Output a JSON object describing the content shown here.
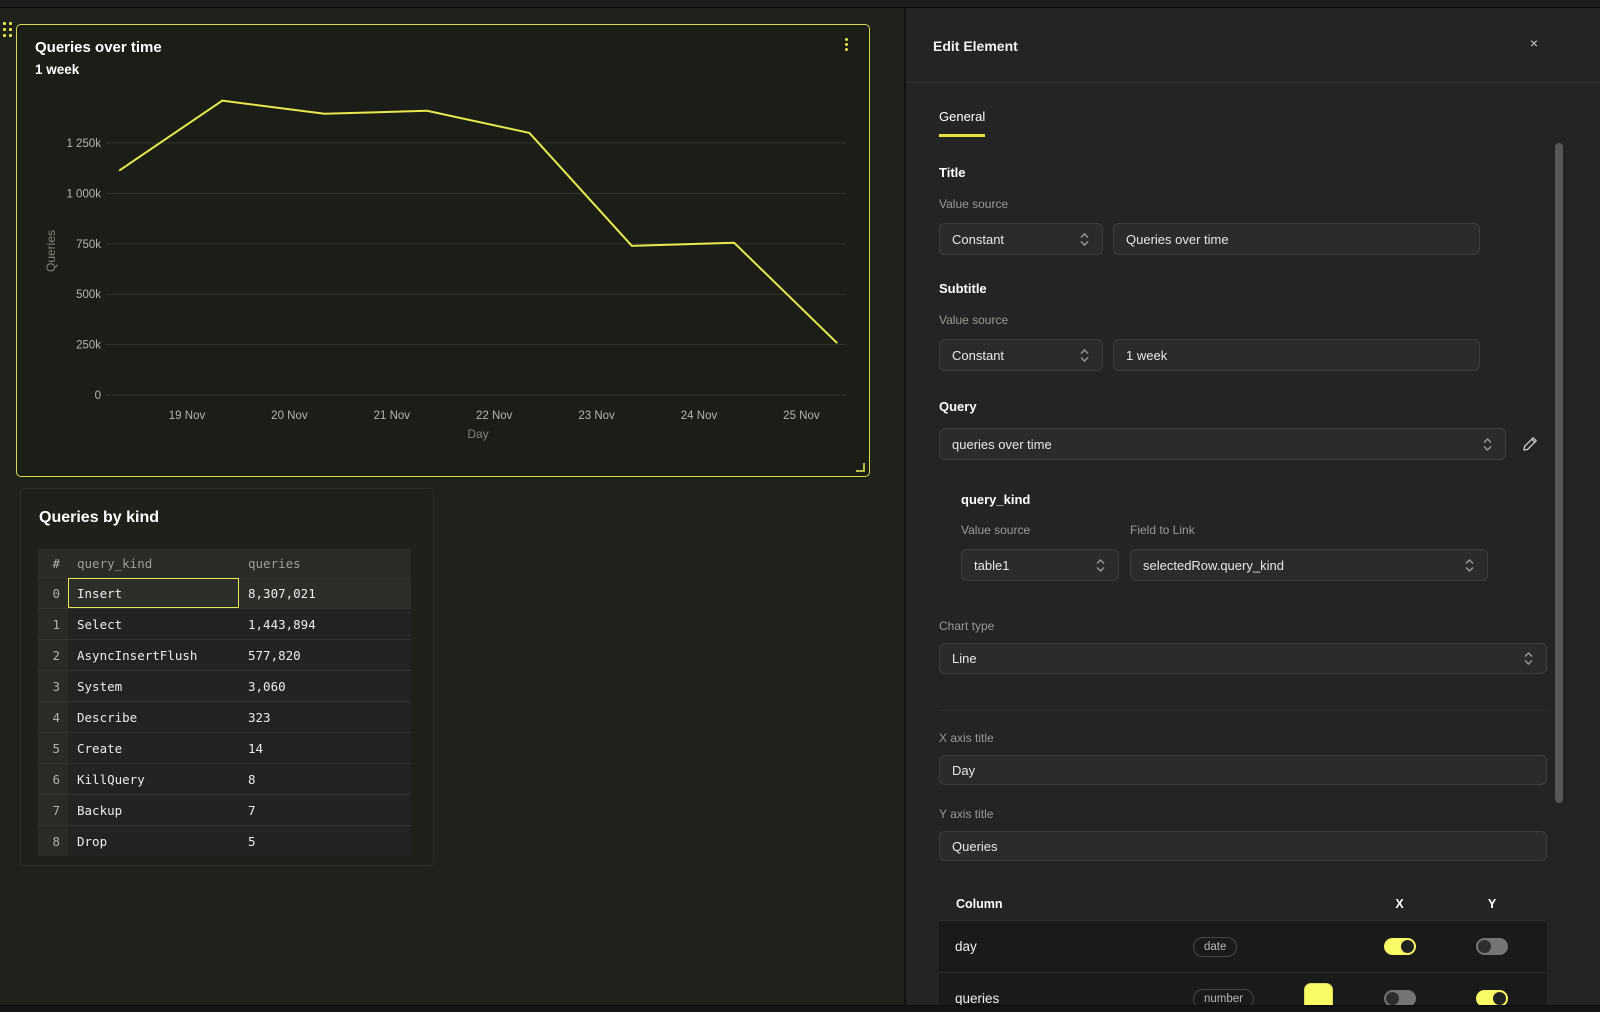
{
  "accent": {
    "yellow": "#e5e94e",
    "bright_yellow": "#f8fb63"
  },
  "chart_panel": {
    "title": "Queries over time",
    "subtitle": "1 week"
  },
  "chart_data": {
    "type": "line",
    "title": "Queries over time",
    "subtitle": "1 week",
    "xlabel": "Day",
    "ylabel": "Queries",
    "grid": true,
    "legend": false,
    "line_color": "#e6ea4e",
    "y_range": [
      0,
      1520000
    ],
    "x_ticks": [
      "19 Nov",
      "20 Nov",
      "21 Nov",
      "22 Nov",
      "23 Nov",
      "24 Nov",
      "25 Nov"
    ],
    "y_ticks": [
      {
        "value": 0,
        "label": "0"
      },
      {
        "value": 250000,
        "label": "250k"
      },
      {
        "value": 500000,
        "label": "500k"
      },
      {
        "value": 750000,
        "label": "750k"
      },
      {
        "value": 1000000,
        "label": "1 000k"
      },
      {
        "value": 1250000,
        "label": "1 250k"
      }
    ],
    "series": [
      {
        "name": "queries",
        "points": [
          {
            "day": "18 Nov",
            "value": 1115000
          },
          {
            "day": "19 Nov",
            "value": 1460000
          },
          {
            "day": "20 Nov",
            "value": 1395000
          },
          {
            "day": "21 Nov",
            "value": 1410000
          },
          {
            "day": "22 Nov",
            "value": 1300000
          },
          {
            "day": "23 Nov",
            "value": 740000
          },
          {
            "day": "24 Nov",
            "value": 755000
          },
          {
            "day": "25 Nov",
            "value": 260000
          }
        ]
      }
    ]
  },
  "table_panel": {
    "title": "Queries by kind",
    "columns": [
      "#",
      "query_kind",
      "queries"
    ],
    "rows": [
      [
        "0",
        "Insert",
        "8,307,021"
      ],
      [
        "1",
        "Select",
        "1,443,894"
      ],
      [
        "2",
        "AsyncInsertFlush",
        "577,820"
      ],
      [
        "3",
        "System",
        "3,060"
      ],
      [
        "4",
        "Describe",
        "323"
      ],
      [
        "5",
        "Create",
        "14"
      ],
      [
        "6",
        "KillQuery",
        "8"
      ],
      [
        "7",
        "Backup",
        "7"
      ],
      [
        "8",
        "Drop",
        "5"
      ]
    ],
    "selected_cell": {
      "row": 0,
      "column": "query_kind"
    }
  },
  "edit_panel": {
    "title": "Edit Element",
    "close_label": "×",
    "tab": "General",
    "title_field": {
      "section": "Title",
      "hint": "Value source",
      "source": "Constant",
      "value": "Queries over time"
    },
    "subtitle_field": {
      "section": "Subtitle",
      "hint": "Value source",
      "source": "Constant",
      "value": "1 week"
    },
    "query_field": {
      "section": "Query",
      "value": "queries over time"
    },
    "query_kind": {
      "section": "query_kind",
      "hint_source": "Value source",
      "hint_link": "Field to Link",
      "source": "table1",
      "field": "selectedRow.query_kind"
    },
    "chart_type": {
      "label": "Chart type",
      "value": "Line"
    },
    "x_axis": {
      "label": "X axis title",
      "value": "Day"
    },
    "y_axis": {
      "label": "Y axis title",
      "value": "Queries"
    },
    "columns_table": {
      "header": {
        "column": "Column",
        "x": "X",
        "y": "Y"
      },
      "rows": [
        {
          "name": "day",
          "type": "date",
          "x_on": true,
          "y_on": false,
          "has_swatch": false
        },
        {
          "name": "queries",
          "type": "number",
          "x_on": false,
          "y_on": true,
          "has_swatch": true,
          "swatch_color": "#f8fb63"
        }
      ]
    }
  }
}
